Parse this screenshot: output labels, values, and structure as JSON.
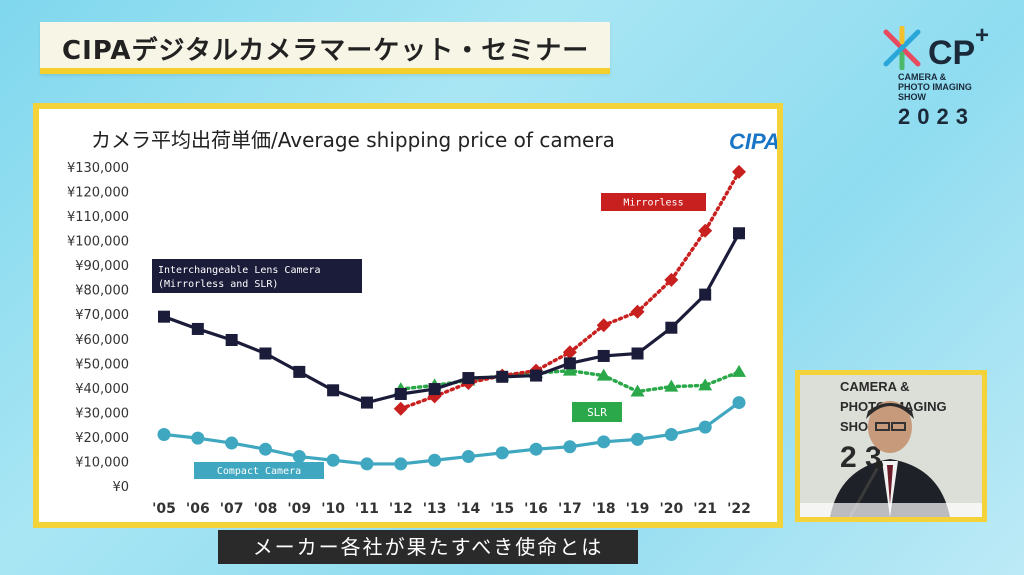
{
  "banner": {
    "title": "CIPAデジタルカメラマーケット・セミナー"
  },
  "event_logo": {
    "name": "CP",
    "plus": "+",
    "line1": "CAMERA &",
    "line2": "PHOTO IMAGING",
    "line3": "SHOW",
    "year": "2023"
  },
  "subtitle": "メーカー各社が果たすべき使命とは",
  "video": {
    "bg_line1": "CAMERA &",
    "bg_line2": "PHOTO IMAGING",
    "bg_line3": "SHO",
    "bg_line4": "2 3"
  },
  "chart_data": {
    "type": "line",
    "title": "カメラ平均出荷単価/Average shipping price of camera",
    "brand": "CIPA",
    "x": [
      "'05",
      "'06",
      "'07",
      "'08",
      "'09",
      "'10",
      "'11",
      "'12",
      "'13",
      "'14",
      "'15",
      "'16",
      "'17",
      "'18",
      "'19",
      "'20",
      "'21",
      "'22"
    ],
    "yticks": [
      "¥0",
      "¥10,000",
      "¥20,000",
      "¥30,000",
      "¥40,000",
      "¥50,000",
      "¥60,000",
      "¥70,000",
      "¥80,000",
      "¥90,000",
      "¥100,000",
      "¥110,000",
      "¥120,000",
      "¥130,000"
    ],
    "ylim": [
      0,
      130000
    ],
    "grid": false,
    "series": [
      {
        "name": "Interchangeable Lens Camera (Mirrorless and SLR)",
        "label_line1": "Interchangeable Lens Camera",
        "label_line2": "(Mirrorless and SLR)",
        "color": "#1b1b3a",
        "style": "solid",
        "marker": "square",
        "values": [
          69000,
          64000,
          59500,
          54000,
          46500,
          39000,
          34000,
          37500,
          39500,
          44000,
          44500,
          45000,
          50000,
          53000,
          54000,
          64500,
          78000,
          103000
        ]
      },
      {
        "name": "Mirrorless",
        "label_line1": "Mirrorless",
        "color": "#c8201f",
        "style": "dotted",
        "marker": "diamond",
        "values": [
          null,
          null,
          null,
          null,
          null,
          null,
          null,
          31500,
          36500,
          42000,
          45000,
          47000,
          54500,
          65500,
          71000,
          84000,
          104000,
          128000
        ]
      },
      {
        "name": "SLR",
        "label_line1": "SLR",
        "color": "#2aa84a",
        "style": "dotted",
        "marker": "triangle",
        "values": [
          null,
          null,
          null,
          null,
          null,
          null,
          null,
          39500,
          41000,
          43000,
          45000,
          46000,
          47000,
          45000,
          38500,
          40500,
          41000,
          46500
        ]
      },
      {
        "name": "Compact Camera",
        "label_line1": "Compact Camera",
        "color": "#3fa7c0",
        "style": "solid",
        "marker": "circle",
        "values": [
          21000,
          19500,
          17500,
          15000,
          12000,
          10500,
          9000,
          9000,
          10500,
          12000,
          13500,
          15000,
          16000,
          18000,
          19000,
          21000,
          24000,
          34000
        ]
      }
    ]
  }
}
